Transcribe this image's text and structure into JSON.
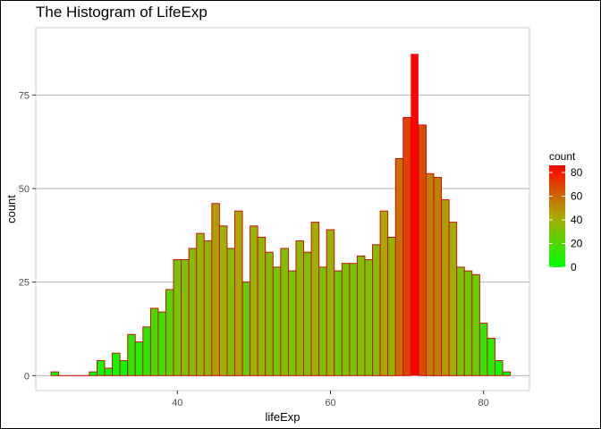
{
  "chart_data": {
    "type": "bar",
    "title": "The Histogram of LifeExp",
    "xlabel": "lifeExp",
    "ylabel": "count",
    "xlim": [
      21.5,
      86
    ],
    "ylim": [
      -4,
      93
    ],
    "x_ticks": [
      40,
      60,
      80
    ],
    "y_ticks": [
      0,
      25,
      50,
      75
    ],
    "bin_width": 1,
    "bins": [
      {
        "x": 24,
        "count": 1
      },
      {
        "x": 25,
        "count": 0
      },
      {
        "x": 26,
        "count": 0
      },
      {
        "x": 27,
        "count": 0
      },
      {
        "x": 28,
        "count": 0
      },
      {
        "x": 29,
        "count": 1
      },
      {
        "x": 30,
        "count": 4
      },
      {
        "x": 31,
        "count": 2
      },
      {
        "x": 32,
        "count": 6
      },
      {
        "x": 33,
        "count": 4
      },
      {
        "x": 34,
        "count": 11
      },
      {
        "x": 35,
        "count": 9
      },
      {
        "x": 36,
        "count": 13
      },
      {
        "x": 37,
        "count": 18
      },
      {
        "x": 38,
        "count": 17
      },
      {
        "x": 39,
        "count": 23
      },
      {
        "x": 40,
        "count": 31
      },
      {
        "x": 41,
        "count": 31
      },
      {
        "x": 42,
        "count": 34
      },
      {
        "x": 43,
        "count": 38
      },
      {
        "x": 44,
        "count": 36
      },
      {
        "x": 45,
        "count": 46
      },
      {
        "x": 46,
        "count": 40
      },
      {
        "x": 47,
        "count": 34
      },
      {
        "x": 48,
        "count": 44
      },
      {
        "x": 49,
        "count": 25
      },
      {
        "x": 50,
        "count": 40
      },
      {
        "x": 51,
        "count": 37
      },
      {
        "x": 52,
        "count": 33
      },
      {
        "x": 53,
        "count": 29
      },
      {
        "x": 54,
        "count": 34
      },
      {
        "x": 55,
        "count": 28
      },
      {
        "x": 56,
        "count": 36
      },
      {
        "x": 57,
        "count": 33
      },
      {
        "x": 58,
        "count": 41
      },
      {
        "x": 59,
        "count": 29
      },
      {
        "x": 60,
        "count": 39
      },
      {
        "x": 61,
        "count": 28
      },
      {
        "x": 62,
        "count": 30
      },
      {
        "x": 63,
        "count": 30
      },
      {
        "x": 64,
        "count": 32
      },
      {
        "x": 65,
        "count": 31
      },
      {
        "x": 66,
        "count": 35
      },
      {
        "x": 67,
        "count": 44
      },
      {
        "x": 68,
        "count": 37
      },
      {
        "x": 69,
        "count": 58
      },
      {
        "x": 70,
        "count": 69
      },
      {
        "x": 71,
        "count": 86
      },
      {
        "x": 72,
        "count": 67
      },
      {
        "x": 73,
        "count": 54
      },
      {
        "x": 74,
        "count": 53
      },
      {
        "x": 75,
        "count": 47
      },
      {
        "x": 76,
        "count": 41
      },
      {
        "x": 77,
        "count": 29
      },
      {
        "x": 78,
        "count": 28
      },
      {
        "x": 79,
        "count": 27
      },
      {
        "x": 80,
        "count": 14
      },
      {
        "x": 81,
        "count": 10
      },
      {
        "x": 82,
        "count": 4
      },
      {
        "x": 83,
        "count": 1
      }
    ],
    "fill_gradient": {
      "low": "#00ff00",
      "high": "#ff0000",
      "limits": [
        0,
        86
      ]
    },
    "bar_outline": "#cc0000",
    "panel_border": "#cccccc",
    "grid_color": "#b3b3b3",
    "grid": "major-y",
    "legend": {
      "title": "count",
      "breaks": [
        0,
        20,
        40,
        60,
        80
      ],
      "position": "right"
    }
  }
}
